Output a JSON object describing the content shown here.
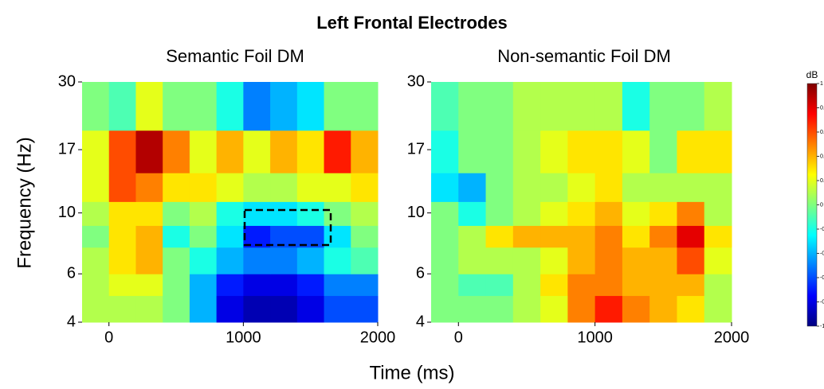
{
  "chart_data": {
    "type": "heatmap",
    "title": "Left Frontal Electrodes",
    "xlabel": "Time (ms)",
    "ylabel": "Frequency (Hz)",
    "xlim": [
      -200,
      2000
    ],
    "xticks": [
      0,
      1000,
      2000
    ],
    "ylim": [
      4,
      30
    ],
    "yticks": [
      4,
      6,
      10,
      17,
      30
    ],
    "log_y": true,
    "time_edges": [
      -200,
      0,
      200,
      400,
      600,
      800,
      1000,
      1200,
      1400,
      1600,
      1800,
      2000
    ],
    "freq_edges": [
      4,
      5,
      6,
      7.5,
      9,
      11,
      14,
      20,
      30
    ],
    "colorbar": {
      "label": "dB",
      "lim": [
        -1,
        1
      ],
      "ticks": [
        -1,
        -0.8,
        -0.6,
        -0.4,
        -0.2,
        0,
        0.2,
        0.4,
        0.6,
        0.8,
        1
      ],
      "colormap": "jet"
    },
    "panels": [
      {
        "subtitle": "Semantic Foil DM",
        "z": [
          [
            0.1,
            0.1,
            0.1,
            0,
            -0.4,
            -0.8,
            -0.9,
            -0.9,
            -0.8,
            -0.6,
            -0.6
          ],
          [
            0.1,
            0.2,
            0.2,
            0,
            -0.4,
            -0.7,
            -0.8,
            -0.8,
            -0.7,
            -0.5,
            -0.5
          ],
          [
            0.1,
            0.3,
            0.4,
            0,
            -0.2,
            -0.4,
            -0.5,
            -0.5,
            -0.4,
            -0.2,
            -0.1
          ],
          [
            0,
            0.3,
            0.4,
            -0.2,
            0,
            -0.3,
            -0.7,
            -0.6,
            -0.6,
            -0.3,
            0
          ],
          [
            0.1,
            0.3,
            0.3,
            0,
            0.1,
            -0.2,
            -0.3,
            -0.3,
            -0.2,
            0,
            0.1
          ],
          [
            0.2,
            0.6,
            0.5,
            0.3,
            0.3,
            0.2,
            0.1,
            0.1,
            0.2,
            0.2,
            0.3
          ],
          [
            0.2,
            0.6,
            0.9,
            0.5,
            0.2,
            0.4,
            0.2,
            0.4,
            0.3,
            0.7,
            0.4
          ],
          [
            0,
            -0.1,
            0.2,
            0,
            0,
            -0.2,
            -0.5,
            -0.4,
            -0.3,
            0,
            0
          ]
        ]
      },
      {
        "subtitle": "Non-semantic Foil DM",
        "z": [
          [
            0,
            0,
            0,
            0.1,
            0.2,
            0.5,
            0.7,
            0.5,
            0.4,
            0.3,
            0.1
          ],
          [
            0,
            -0.1,
            -0.1,
            0.1,
            0.3,
            0.5,
            0.5,
            0.4,
            0.4,
            0.4,
            0.1
          ],
          [
            0,
            0.1,
            0.1,
            0.1,
            0.2,
            0.4,
            0.5,
            0.4,
            0.4,
            0.6,
            0.2
          ],
          [
            0,
            0.1,
            0.3,
            0.4,
            0.4,
            0.4,
            0.5,
            0.3,
            0.5,
            0.8,
            0.3
          ],
          [
            0,
            -0.2,
            0,
            0.1,
            0.2,
            0.3,
            0.4,
            0.2,
            0.3,
            0.5,
            0.1
          ],
          [
            -0.3,
            -0.4,
            0,
            0.1,
            0.1,
            0.2,
            0.3,
            0.1,
            0.1,
            0.1,
            0.1
          ],
          [
            -0.2,
            0,
            0,
            0.1,
            0.2,
            0.3,
            0.3,
            0.2,
            0,
            0.3,
            0.3
          ],
          [
            -0.1,
            0,
            0,
            0.1,
            0.1,
            0.1,
            0.1,
            -0.2,
            0,
            0,
            0.1
          ]
        ]
      }
    ]
  }
}
